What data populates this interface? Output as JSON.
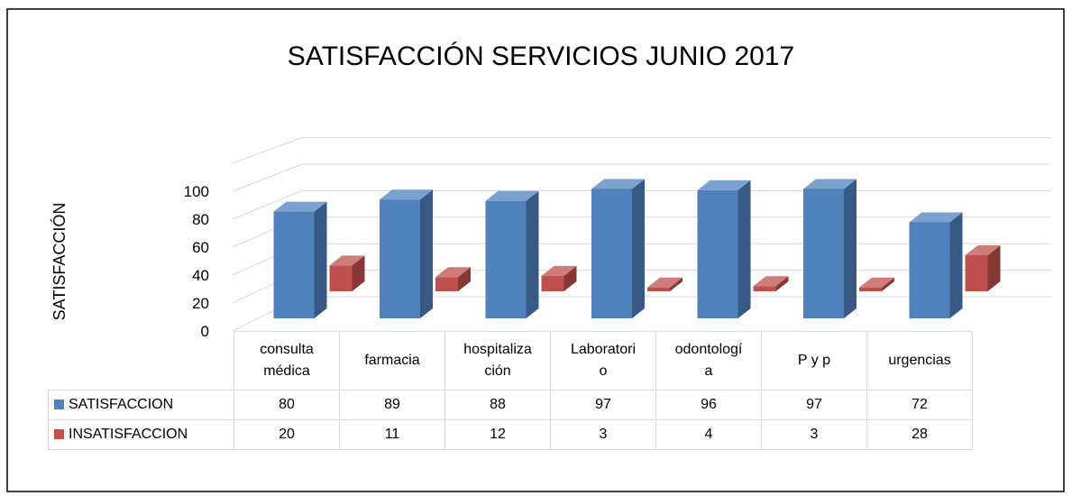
{
  "chart_data": {
    "type": "bar3d",
    "title": "SATISFACCIÓN SERVICIOS  JUNIO 2017",
    "y_label": "SATISFACCIÓN",
    "categories": [
      "consulta médica",
      "farmacia",
      "hospitalización",
      "Laboratorio",
      "odontología",
      "P y p",
      "urgencias"
    ],
    "series": [
      {
        "name": "SATISFACCION",
        "color": "#4f81bd",
        "values": [
          80,
          89,
          88,
          97,
          96,
          97,
          72
        ]
      },
      {
        "name": "INSATISFACCION",
        "color": "#c0504d",
        "values": [
          20,
          11,
          12,
          3,
          4,
          3,
          28
        ]
      }
    ],
    "ylim": [
      0,
      120
    ],
    "yticks": [
      0,
      20,
      40,
      60,
      80,
      100
    ],
    "grid": true,
    "data_table": true
  }
}
